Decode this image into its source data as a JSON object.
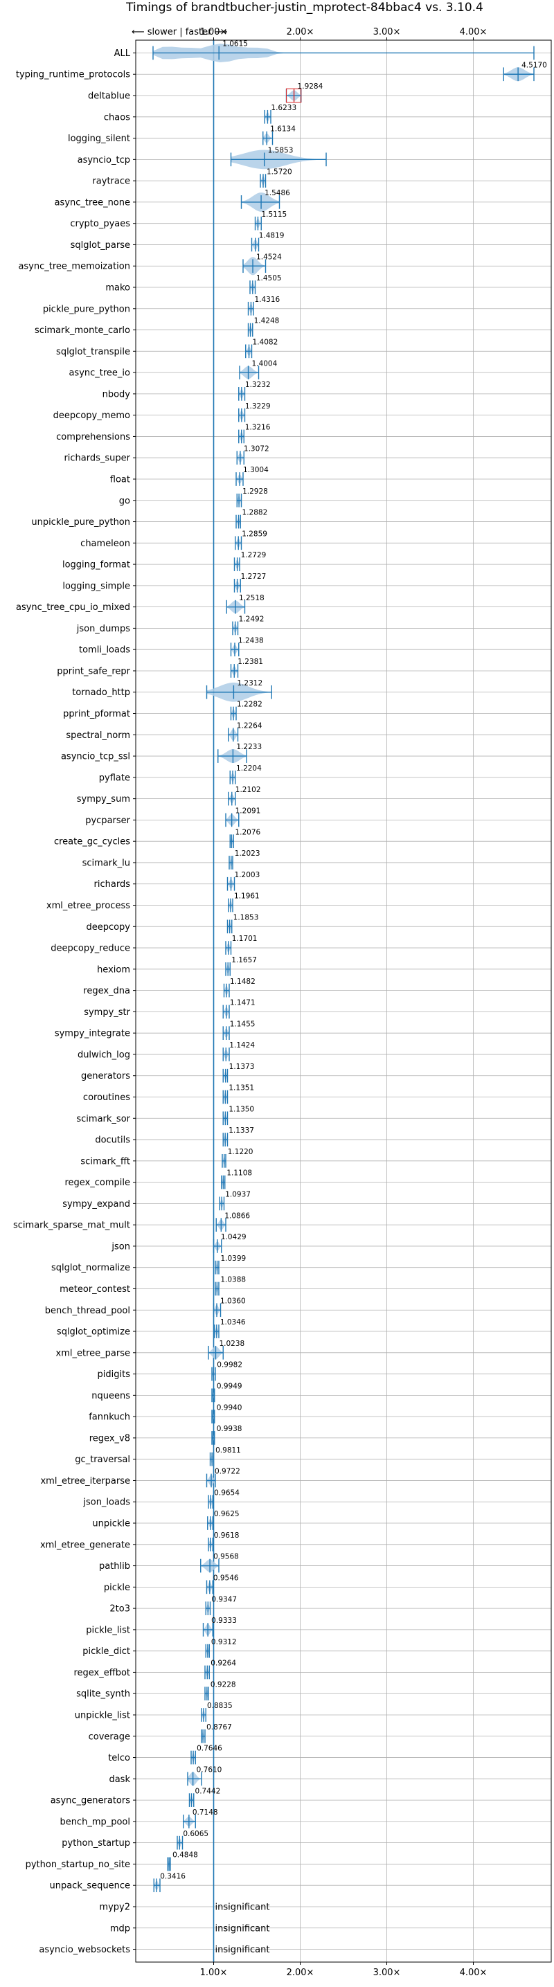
{
  "chart_data": {
    "type": "violin",
    "title": "Timings of brandtbucher-justin_mprotect-84bbac4 vs. 3.10.4",
    "direction_label": "⟵ slower | faster ⟶",
    "x_ticks": [
      "1.00×",
      "2.00×",
      "3.00×",
      "4.00×"
    ],
    "x_tick_values": [
      1,
      2,
      3,
      4
    ],
    "xlim": [
      0.1,
      4.9
    ],
    "grid": true,
    "colors": {
      "violin": "#aecde6",
      "line": "#1f77b4",
      "median_red": "#d62728"
    },
    "insignificant_label": "insignificant",
    "rows": [
      {
        "name": "ALL",
        "value": 1.0615,
        "label": "1.0615",
        "lo": 0.3,
        "hi": 4.7,
        "w": 0.9,
        "dist": [
          0.4,
          0.5,
          0.65,
          0.8,
          1.0,
          1.15,
          1.3,
          1.45,
          1.6
        ]
      },
      {
        "name": "typing_runtime_protocols",
        "value": 4.517,
        "label": "4.5170",
        "lo": 4.35,
        "hi": 4.7,
        "w": 0.65
      },
      {
        "name": "deltablue",
        "value": 1.9284,
        "label": "1.9284",
        "lo": 1.84,
        "hi": 2.01,
        "w": 0.5,
        "red": true
      },
      {
        "name": "chaos",
        "value": 1.6233,
        "label": "1.6233",
        "lo": 1.59,
        "hi": 1.66,
        "w": 0.45
      },
      {
        "name": "logging_silent",
        "value": 1.6134,
        "label": "1.6134",
        "lo": 1.57,
        "hi": 1.68,
        "w": 0.45
      },
      {
        "name": "asyncio_tcp",
        "value": 1.5853,
        "label": "1.5853",
        "lo": 1.2,
        "hi": 2.3,
        "w": 0.9
      },
      {
        "name": "raytrace",
        "value": 1.572,
        "label": "1.5720",
        "lo": 1.54,
        "hi": 1.6,
        "w": 0.45
      },
      {
        "name": "async_tree_none",
        "value": 1.5486,
        "label": "1.5486",
        "lo": 1.32,
        "hi": 1.76,
        "w": 0.9
      },
      {
        "name": "crypto_pyaes",
        "value": 1.5115,
        "label": "1.5115",
        "lo": 1.48,
        "hi": 1.55,
        "w": 0.45
      },
      {
        "name": "sqlglot_parse",
        "value": 1.4819,
        "label": "1.4819",
        "lo": 1.44,
        "hi": 1.52,
        "w": 0.5
      },
      {
        "name": "async_tree_memoization",
        "value": 1.4524,
        "label": "1.4524",
        "lo": 1.34,
        "hi": 1.6,
        "w": 0.85
      },
      {
        "name": "mako",
        "value": 1.4505,
        "label": "1.4505",
        "lo": 1.42,
        "hi": 1.48,
        "w": 0.45
      },
      {
        "name": "pickle_pure_python",
        "value": 1.4316,
        "label": "1.4316",
        "lo": 1.4,
        "hi": 1.46,
        "w": 0.45
      },
      {
        "name": "scimark_monte_carlo",
        "value": 1.4248,
        "label": "1.4248",
        "lo": 1.4,
        "hi": 1.45,
        "w": 0.45
      },
      {
        "name": "sqlglot_transpile",
        "value": 1.4082,
        "label": "1.4082",
        "lo": 1.37,
        "hi": 1.44,
        "w": 0.45
      },
      {
        "name": "async_tree_io",
        "value": 1.4004,
        "label": "1.4004",
        "lo": 1.3,
        "hi": 1.52,
        "w": 0.6
      },
      {
        "name": "nbody",
        "value": 1.3232,
        "label": "1.3232",
        "lo": 1.29,
        "hi": 1.36,
        "w": 0.45
      },
      {
        "name": "deepcopy_memo",
        "value": 1.3229,
        "label": "1.3229",
        "lo": 1.29,
        "hi": 1.36,
        "w": 0.45
      },
      {
        "name": "comprehensions",
        "value": 1.3216,
        "label": "1.3216",
        "lo": 1.29,
        "hi": 1.35,
        "w": 0.45
      },
      {
        "name": "richards_super",
        "value": 1.3072,
        "label": "1.3072",
        "lo": 1.27,
        "hi": 1.35,
        "w": 0.45
      },
      {
        "name": "float",
        "value": 1.3004,
        "label": "1.3004",
        "lo": 1.26,
        "hi": 1.34,
        "w": 0.45
      },
      {
        "name": "go",
        "value": 1.2928,
        "label": "1.2928",
        "lo": 1.27,
        "hi": 1.32,
        "w": 0.45
      },
      {
        "name": "unpickle_pure_python",
        "value": 1.2882,
        "label": "1.2882",
        "lo": 1.26,
        "hi": 1.31,
        "w": 0.45
      },
      {
        "name": "chameleon",
        "value": 1.2859,
        "label": "1.2859",
        "lo": 1.25,
        "hi": 1.32,
        "w": 0.45
      },
      {
        "name": "logging_format",
        "value": 1.2729,
        "label": "1.2729",
        "lo": 1.24,
        "hi": 1.3,
        "w": 0.45
      },
      {
        "name": "logging_simple",
        "value": 1.2727,
        "label": "1.2727",
        "lo": 1.24,
        "hi": 1.31,
        "w": 0.45
      },
      {
        "name": "async_tree_cpu_io_mixed",
        "value": 1.2518,
        "label": "1.2518",
        "lo": 1.15,
        "hi": 1.36,
        "w": 0.6
      },
      {
        "name": "json_dumps",
        "value": 1.2492,
        "label": "1.2492",
        "lo": 1.22,
        "hi": 1.28,
        "w": 0.45
      },
      {
        "name": "tomli_loads",
        "value": 1.2438,
        "label": "1.2438",
        "lo": 1.2,
        "hi": 1.29,
        "w": 0.45
      },
      {
        "name": "pprint_safe_repr",
        "value": 1.2381,
        "label": "1.2381",
        "lo": 1.2,
        "hi": 1.28,
        "w": 0.45
      },
      {
        "name": "tornado_http",
        "value": 1.2312,
        "label": "1.2312",
        "lo": 0.92,
        "hi": 1.67,
        "w": 0.9
      },
      {
        "name": "pprint_pformat",
        "value": 1.2282,
        "label": "1.2282",
        "lo": 1.2,
        "hi": 1.26,
        "w": 0.45
      },
      {
        "name": "spectral_norm",
        "value": 1.2264,
        "label": "1.2264",
        "lo": 1.17,
        "hi": 1.28,
        "w": 0.55
      },
      {
        "name": "asyncio_tcp_ssl",
        "value": 1.2233,
        "label": "1.2233",
        "lo": 1.05,
        "hi": 1.38,
        "w": 0.65
      },
      {
        "name": "pyflate",
        "value": 1.2204,
        "label": "1.2204",
        "lo": 1.19,
        "hi": 1.25,
        "w": 0.45
      },
      {
        "name": "sympy_sum",
        "value": 1.2102,
        "label": "1.2102",
        "lo": 1.17,
        "hi": 1.25,
        "w": 0.45
      },
      {
        "name": "pycparser",
        "value": 1.2091,
        "label": "1.2091",
        "lo": 1.14,
        "hi": 1.29,
        "w": 0.55
      },
      {
        "name": "create_gc_cycles",
        "value": 1.2076,
        "label": "1.2076",
        "lo": 1.19,
        "hi": 1.23,
        "w": 0.45
      },
      {
        "name": "scimark_lu",
        "value": 1.2023,
        "label": "1.2023",
        "lo": 1.18,
        "hi": 1.22,
        "w": 0.45
      },
      {
        "name": "richards",
        "value": 1.2003,
        "label": "1.2003",
        "lo": 1.16,
        "hi": 1.24,
        "w": 0.45
      },
      {
        "name": "xml_etree_process",
        "value": 1.1961,
        "label": "1.1961",
        "lo": 1.17,
        "hi": 1.22,
        "w": 0.45
      },
      {
        "name": "deepcopy",
        "value": 1.1853,
        "label": "1.1853",
        "lo": 1.16,
        "hi": 1.21,
        "w": 0.45
      },
      {
        "name": "deepcopy_reduce",
        "value": 1.1701,
        "label": "1.1701",
        "lo": 1.14,
        "hi": 1.2,
        "w": 0.45
      },
      {
        "name": "hexiom",
        "value": 1.1657,
        "label": "1.1657",
        "lo": 1.14,
        "hi": 1.19,
        "w": 0.45
      },
      {
        "name": "regex_dna",
        "value": 1.1482,
        "label": "1.1482",
        "lo": 1.12,
        "hi": 1.18,
        "w": 0.45
      },
      {
        "name": "sympy_str",
        "value": 1.1471,
        "label": "1.1471",
        "lo": 1.11,
        "hi": 1.18,
        "w": 0.45
      },
      {
        "name": "sympy_integrate",
        "value": 1.1455,
        "label": "1.1455",
        "lo": 1.11,
        "hi": 1.18,
        "w": 0.45
      },
      {
        "name": "dulwich_log",
        "value": 1.1424,
        "label": "1.1424",
        "lo": 1.11,
        "hi": 1.18,
        "w": 0.45
      },
      {
        "name": "generators",
        "value": 1.1373,
        "label": "1.1373",
        "lo": 1.11,
        "hi": 1.16,
        "w": 0.45
      },
      {
        "name": "coroutines",
        "value": 1.1351,
        "label": "1.1351",
        "lo": 1.11,
        "hi": 1.16,
        "w": 0.45
      },
      {
        "name": "scimark_sor",
        "value": 1.135,
        "label": "1.1350",
        "lo": 1.11,
        "hi": 1.16,
        "w": 0.45
      },
      {
        "name": "docutils",
        "value": 1.1337,
        "label": "1.1337",
        "lo": 1.11,
        "hi": 1.16,
        "w": 0.45
      },
      {
        "name": "scimark_fft",
        "value": 1.122,
        "label": "1.1220",
        "lo": 1.1,
        "hi": 1.14,
        "w": 0.45
      },
      {
        "name": "regex_compile",
        "value": 1.1108,
        "label": "1.1108",
        "lo": 1.09,
        "hi": 1.13,
        "w": 0.45
      },
      {
        "name": "sympy_expand",
        "value": 1.0937,
        "label": "1.0937",
        "lo": 1.07,
        "hi": 1.12,
        "w": 0.45
      },
      {
        "name": "scimark_sparse_mat_mult",
        "value": 1.0866,
        "label": "1.0866",
        "lo": 1.03,
        "hi": 1.14,
        "w": 0.5
      },
      {
        "name": "json",
        "value": 1.0429,
        "label": "1.0429",
        "lo": 1.0,
        "hi": 1.09,
        "w": 0.45
      },
      {
        "name": "sqlglot_normalize",
        "value": 1.0399,
        "label": "1.0399",
        "lo": 1.02,
        "hi": 1.06,
        "w": 0.45
      },
      {
        "name": "meteor_contest",
        "value": 1.0388,
        "label": "1.0388",
        "lo": 1.02,
        "hi": 1.06,
        "w": 0.45
      },
      {
        "name": "bench_thread_pool",
        "value": 1.036,
        "label": "1.0360",
        "lo": 1.0,
        "hi": 1.08,
        "w": 0.5
      },
      {
        "name": "sqlglot_optimize",
        "value": 1.0346,
        "label": "1.0346",
        "lo": 1.01,
        "hi": 1.06,
        "w": 0.45
      },
      {
        "name": "xml_etree_parse",
        "value": 1.0238,
        "label": "1.0238",
        "lo": 0.94,
        "hi": 1.11,
        "w": 0.6
      },
      {
        "name": "pidigits",
        "value": 0.9982,
        "label": "0.9982",
        "lo": 0.98,
        "hi": 1.02,
        "w": 0.45
      },
      {
        "name": "nqueens",
        "value": 0.9949,
        "label": "0.9949",
        "lo": 0.98,
        "hi": 1.01,
        "w": 0.45
      },
      {
        "name": "fannkuch",
        "value": 0.994,
        "label": "0.9940",
        "lo": 0.98,
        "hi": 1.01,
        "w": 0.45
      },
      {
        "name": "regex_v8",
        "value": 0.9938,
        "label": "0.9938",
        "lo": 0.98,
        "hi": 1.01,
        "w": 0.45
      },
      {
        "name": "gc_traversal",
        "value": 0.9811,
        "label": "0.9811",
        "lo": 0.96,
        "hi": 1.0,
        "w": 0.45
      },
      {
        "name": "xml_etree_iterparse",
        "value": 0.9722,
        "label": "0.9722",
        "lo": 0.92,
        "hi": 1.02,
        "w": 0.55
      },
      {
        "name": "json_loads",
        "value": 0.9654,
        "label": "0.9654",
        "lo": 0.94,
        "hi": 0.99,
        "w": 0.45
      },
      {
        "name": "unpickle",
        "value": 0.9625,
        "label": "0.9625",
        "lo": 0.93,
        "hi": 0.99,
        "w": 0.45
      },
      {
        "name": "xml_etree_generate",
        "value": 0.9618,
        "label": "0.9618",
        "lo": 0.94,
        "hi": 0.99,
        "w": 0.45
      },
      {
        "name": "pathlib",
        "value": 0.9568,
        "label": "0.9568",
        "lo": 0.85,
        "hi": 1.06,
        "w": 0.6
      },
      {
        "name": "pickle",
        "value": 0.9546,
        "label": "0.9546",
        "lo": 0.92,
        "hi": 0.99,
        "w": 0.5
      },
      {
        "name": "2to3",
        "value": 0.9347,
        "label": "0.9347",
        "lo": 0.91,
        "hi": 0.96,
        "w": 0.45
      },
      {
        "name": "pickle_list",
        "value": 0.9333,
        "label": "0.9333",
        "lo": 0.88,
        "hi": 0.99,
        "w": 0.55
      },
      {
        "name": "pickle_dict",
        "value": 0.9312,
        "label": "0.9312",
        "lo": 0.91,
        "hi": 0.95,
        "w": 0.45
      },
      {
        "name": "regex_effbot",
        "value": 0.9264,
        "label": "0.9264",
        "lo": 0.9,
        "hi": 0.95,
        "w": 0.45
      },
      {
        "name": "sqlite_synth",
        "value": 0.9228,
        "label": "0.9228",
        "lo": 0.9,
        "hi": 0.94,
        "w": 0.45
      },
      {
        "name": "unpickle_list",
        "value": 0.8835,
        "label": "0.8835",
        "lo": 0.86,
        "hi": 0.91,
        "w": 0.45
      },
      {
        "name": "coverage",
        "value": 0.8767,
        "label": "0.8767",
        "lo": 0.86,
        "hi": 0.9,
        "w": 0.45
      },
      {
        "name": "telco",
        "value": 0.7646,
        "label": "0.7646",
        "lo": 0.74,
        "hi": 0.79,
        "w": 0.45
      },
      {
        "name": "dask",
        "value": 0.761,
        "label": "0.7610",
        "lo": 0.7,
        "hi": 0.86,
        "w": 0.65
      },
      {
        "name": "async_generators",
        "value": 0.7442,
        "label": "0.7442",
        "lo": 0.72,
        "hi": 0.77,
        "w": 0.45
      },
      {
        "name": "bench_mp_pool",
        "value": 0.7148,
        "label": "0.7148",
        "lo": 0.65,
        "hi": 0.79,
        "w": 0.45
      },
      {
        "name": "python_startup",
        "value": 0.6065,
        "label": "0.6065",
        "lo": 0.58,
        "hi": 0.64,
        "w": 0.45
      },
      {
        "name": "python_startup_no_site",
        "value": 0.4848,
        "label": "0.4848",
        "lo": 0.47,
        "hi": 0.5,
        "w": 0.45
      },
      {
        "name": "unpack_sequence",
        "value": 0.3416,
        "label": "0.3416",
        "lo": 0.31,
        "hi": 0.38,
        "w": 0.45
      },
      {
        "name": "mypy2",
        "insignificant": true
      },
      {
        "name": "mdp",
        "insignificant": true
      },
      {
        "name": "asyncio_websockets",
        "insignificant": true
      }
    ]
  }
}
